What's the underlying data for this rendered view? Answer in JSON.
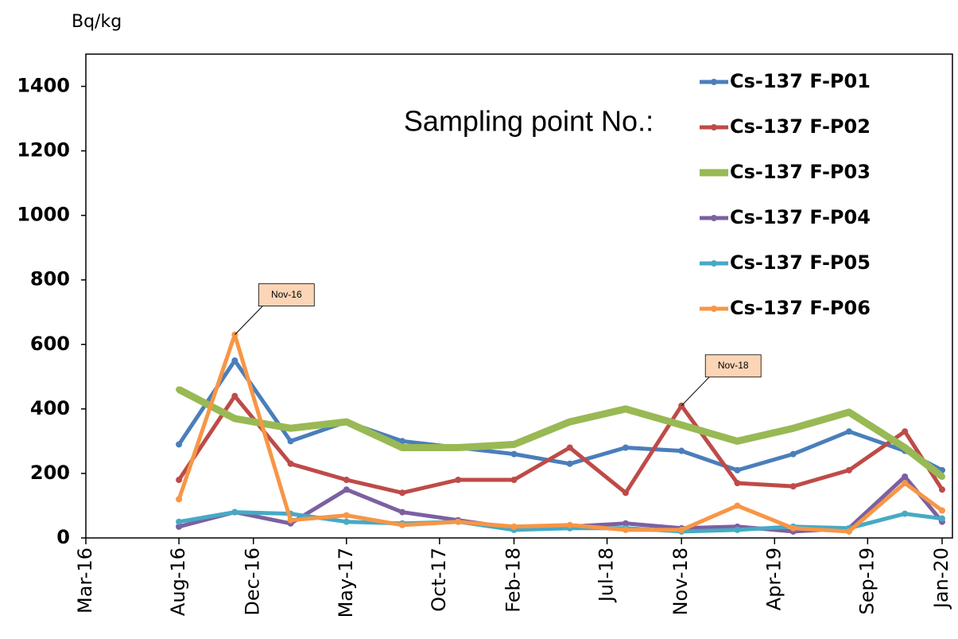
{
  "chart_data": {
    "type": "line",
    "y_label": "Bq/kg",
    "legend_title": "Sampling point No.:",
    "legend_position": "top-right",
    "x": [
      "Aug-16",
      "Nov-16",
      "Feb-17",
      "May-17",
      "Aug-17",
      "Nov-17",
      "Feb-18",
      "May-18",
      "Aug-18",
      "Nov-18",
      "Feb-19",
      "May-19",
      "Aug-19",
      "Nov-19",
      "Jan-20"
    ],
    "xlim": [
      "Mar-16",
      "Jan-20"
    ],
    "xticks": [
      "Mar-16",
      "Aug-16",
      "Dec-16",
      "May-17",
      "Oct-17",
      "Feb-18",
      "Jul-18",
      "Nov-18",
      "Apr-19",
      "Sep-19",
      "Jan-20"
    ],
    "ylim": [
      0,
      1500
    ],
    "yticks": [
      0,
      200,
      400,
      600,
      800,
      1000,
      1200,
      1400
    ],
    "series": [
      {
        "name": "Cs-137 F-P01",
        "color": "#4a7ebb",
        "line_width": 5,
        "values": [
          290,
          550,
          300,
          360,
          300,
          280,
          260,
          230,
          280,
          270,
          210,
          260,
          330,
          270,
          210
        ]
      },
      {
        "name": "Cs-137 F-P02",
        "color": "#be4b48",
        "line_width": 5,
        "values": [
          180,
          440,
          230,
          180,
          140,
          180,
          180,
          280,
          140,
          410,
          170,
          160,
          210,
          330,
          150
        ]
      },
      {
        "name": "Cs-137 F-P03",
        "color": "#98b954",
        "line_width": 9,
        "values": [
          460,
          370,
          340,
          360,
          280,
          280,
          290,
          360,
          400,
          350,
          300,
          340,
          390,
          280,
          190
        ]
      },
      {
        "name": "Cs-137 F-P04",
        "color": "#7d60a0",
        "line_width": 5,
        "values": [
          35,
          80,
          45,
          150,
          80,
          55,
          30,
          35,
          45,
          30,
          35,
          20,
          30,
          190,
          50
        ]
      },
      {
        "name": "Cs-137 F-P05",
        "color": "#46aac5",
        "line_width": 5,
        "values": [
          50,
          80,
          75,
          50,
          45,
          50,
          25,
          30,
          30,
          20,
          25,
          35,
          30,
          75,
          60
        ]
      },
      {
        "name": "Cs-137 F-P06",
        "color": "#f79646",
        "line_width": 5,
        "values": [
          120,
          630,
          55,
          70,
          40,
          50,
          35,
          40,
          25,
          25,
          100,
          30,
          20,
          170,
          85
        ]
      }
    ],
    "annotations": [
      "Nov-16",
      "Nov-18"
    ]
  }
}
